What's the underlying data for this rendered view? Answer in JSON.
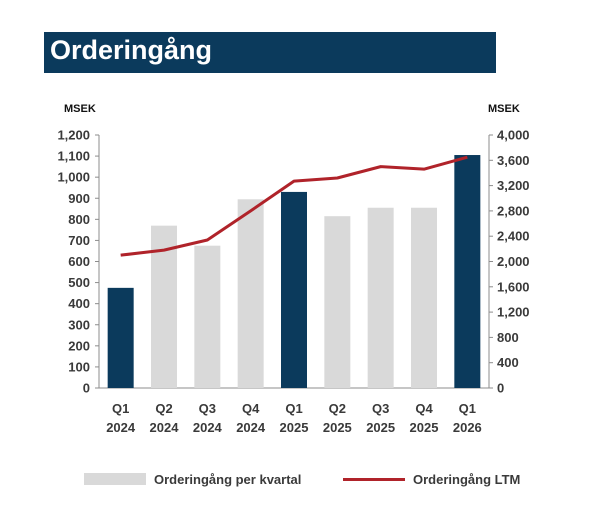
{
  "header": {
    "title": "Orderingång"
  },
  "chart_data": {
    "type": "bar",
    "title": "Orderingång",
    "categories": [
      [
        "Q1",
        "2024"
      ],
      [
        "Q2",
        "2024"
      ],
      [
        "Q3",
        "2024"
      ],
      [
        "Q4",
        "2024"
      ],
      [
        "Q1",
        "2025"
      ],
      [
        "Q2",
        "2025"
      ],
      [
        "Q3",
        "2025"
      ],
      [
        "Q4",
        "2025"
      ],
      [
        "Q1",
        "2026"
      ]
    ],
    "series": [
      {
        "name": "Orderingång per kvartal",
        "type": "bar",
        "axis": "left",
        "values": [
          475,
          770,
          675,
          895,
          930,
          815,
          855,
          855,
          1105
        ],
        "highlight": [
          true,
          false,
          false,
          false,
          true,
          false,
          false,
          false,
          true
        ],
        "color": "#d9d9d9",
        "highlight_color": "#0b3a5c"
      },
      {
        "name": "Orderingång LTM",
        "type": "line",
        "axis": "right",
        "values": [
          2100,
          2180,
          2340,
          2800,
          3270,
          3320,
          3500,
          3460,
          3650
        ],
        "color": "#b0232a"
      }
    ],
    "y_left": {
      "label": "MSEK",
      "min": 0,
      "max": 1200,
      "ticks": [
        "0",
        "100",
        "200",
        "300",
        "400",
        "500",
        "600",
        "700",
        "800",
        "900",
        "1,000",
        "1,100",
        "1,200"
      ]
    },
    "y_right": {
      "label": "MSEK",
      "min": 0,
      "max": 4000,
      "ticks": [
        "0",
        "400",
        "800",
        "1,200",
        "1,600",
        "2,000",
        "2,400",
        "2,800",
        "3,200",
        "3,600",
        "4,000"
      ]
    },
    "grid": false,
    "legend": "bottom"
  }
}
